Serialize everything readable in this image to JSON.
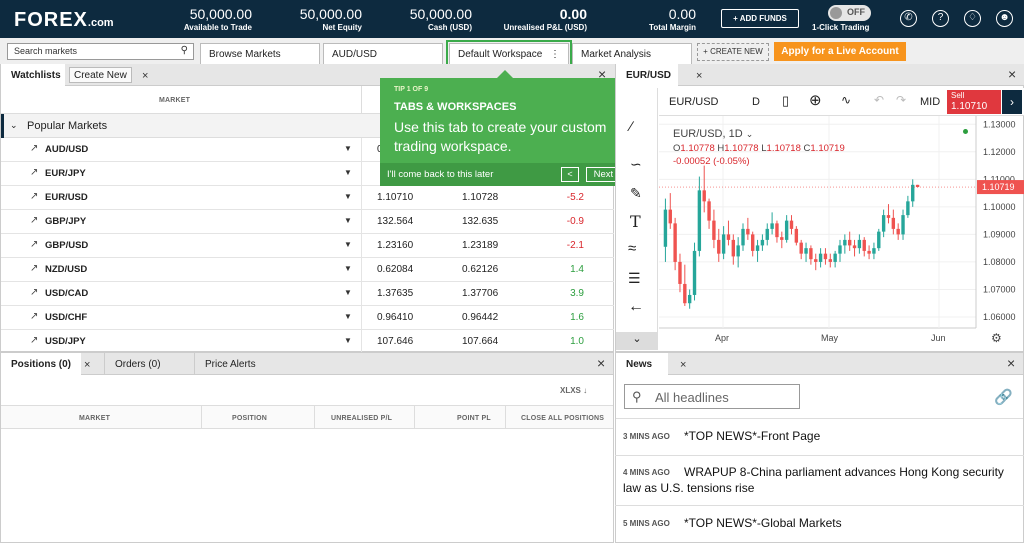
{
  "brand": {
    "logo_main": "FOREX",
    "logo_suffix": ".com"
  },
  "account_stats": [
    {
      "value": "50,000.00",
      "label": "Available to Trade"
    },
    {
      "value": "50,000.00",
      "label": "Net Equity"
    },
    {
      "value": "50,000.00",
      "label": "Cash (USD)"
    },
    {
      "value": "0.00",
      "label": "Unrealised P&L (USD)"
    },
    {
      "value": "0.00",
      "label": "Total Margin"
    }
  ],
  "header": {
    "add_funds": "+ ADD FUNDS",
    "toggle_state": "OFF",
    "one_click_label": "1-Click Trading",
    "icons": [
      "phone-icon",
      "help-icon",
      "notifications-icon",
      "user-icon"
    ]
  },
  "tabbar": {
    "search_placeholder": "Search markets",
    "tabs": [
      "Browse Markets",
      "AUD/USD",
      "Default Workspace",
      "Market Analysis"
    ],
    "create_workspace": "+ CREATE NEW",
    "live_account": "Apply for a Live Account"
  },
  "watchlist": {
    "tab_label": "Watchlists",
    "create_new": "Create New",
    "col_market": "MARKET",
    "group": "Popular Markets",
    "rows": [
      {
        "name": "AUD/USD",
        "sell": "0.",
        "buy": "",
        "change": ""
      },
      {
        "name": "EUR/JPY",
        "sell": "",
        "buy": "",
        "change": ""
      },
      {
        "name": "EUR/USD",
        "sell": "1.10710",
        "buy": "1.10728",
        "change": "-5.2",
        "dir": "neg"
      },
      {
        "name": "GBP/JPY",
        "sell": "132.564",
        "buy": "132.635",
        "change": "-0.9",
        "dir": "neg"
      },
      {
        "name": "GBP/USD",
        "sell": "1.23160",
        "buy": "1.23189",
        "change": "-2.1",
        "dir": "neg"
      },
      {
        "name": "NZD/USD",
        "sell": "0.62084",
        "buy": "0.62126",
        "change": "1.4",
        "dir": "pos"
      },
      {
        "name": "USD/CAD",
        "sell": "1.37635",
        "buy": "1.37706",
        "change": "3.9",
        "dir": "pos"
      },
      {
        "name": "USD/CHF",
        "sell": "0.96410",
        "buy": "0.96442",
        "change": "1.6",
        "dir": "pos"
      },
      {
        "name": "USD/JPY",
        "sell": "107.646",
        "buy": "107.664",
        "change": "1.0",
        "dir": "pos"
      }
    ]
  },
  "tooltip": {
    "counter": "TIP 1 OF 9",
    "title": "TABS & WORKSPACES",
    "body": "Use this tab to create your custom trading workspace.",
    "dismiss": "I'll come back to this later",
    "prev": "<",
    "next": "Next >"
  },
  "chart_panel": {
    "tab_label": "EUR/USD",
    "symbol": "EUR/USD",
    "interval": "D",
    "price_type": "MID",
    "sell_label": "Sell",
    "sell_price": "1.10710",
    "legend_title": "EUR/USD, 1D",
    "ohlc": {
      "o_label": "O",
      "o": "1.10778",
      "h_label": "H",
      "h": "1.10778",
      "l_label": "L",
      "l": "1.10718",
      "c_label": "C",
      "c": "1.10719"
    },
    "change": "-0.00052 (-0.05%)",
    "last_price": "1.10719"
  },
  "chart_data": {
    "type": "candlestick",
    "title": "EUR/USD, 1D",
    "x_ticks": [
      "Apr",
      "May",
      "Jun"
    ],
    "y_ticks": [
      1.13,
      1.12,
      1.11,
      1.1,
      1.09,
      1.08,
      1.07,
      1.06
    ],
    "ylim": [
      1.056,
      1.133
    ],
    "last_price": 1.10719,
    "colors": {
      "up": "#26a69a",
      "down": "#ef5350"
    },
    "candles": [
      [
        1.0855,
        1.103,
        1.08,
        1.099
      ],
      [
        1.099,
        1.105,
        1.092,
        1.094
      ],
      [
        1.094,
        1.096,
        1.077,
        1.08
      ],
      [
        1.08,
        1.083,
        1.069,
        1.072
      ],
      [
        1.072,
        1.079,
        1.064,
        1.065
      ],
      [
        1.065,
        1.07,
        1.063,
        1.068
      ],
      [
        1.068,
        1.087,
        1.066,
        1.084
      ],
      [
        1.084,
        1.111,
        1.082,
        1.106
      ],
      [
        1.106,
        1.115,
        1.098,
        1.102
      ],
      [
        1.102,
        1.103,
        1.092,
        1.095
      ],
      [
        1.095,
        1.099,
        1.085,
        1.088
      ],
      [
        1.088,
        1.092,
        1.08,
        1.083
      ],
      [
        1.083,
        1.093,
        1.081,
        1.09
      ],
      [
        1.09,
        1.095,
        1.086,
        1.088
      ],
      [
        1.088,
        1.09,
        1.079,
        1.082
      ],
      [
        1.082,
        1.089,
        1.078,
        1.086
      ],
      [
        1.086,
        1.094,
        1.084,
        1.092
      ],
      [
        1.092,
        1.096,
        1.088,
        1.09
      ],
      [
        1.09,
        1.091,
        1.082,
        1.084
      ],
      [
        1.084,
        1.088,
        1.08,
        1.086
      ],
      [
        1.086,
        1.09,
        1.084,
        1.088
      ],
      [
        1.088,
        1.094,
        1.086,
        1.092
      ],
      [
        1.092,
        1.098,
        1.09,
        1.094
      ],
      [
        1.094,
        1.095,
        1.087,
        1.089
      ],
      [
        1.089,
        1.091,
        1.085,
        1.088
      ],
      [
        1.088,
        1.097,
        1.087,
        1.095
      ],
      [
        1.095,
        1.097,
        1.09,
        1.092
      ],
      [
        1.092,
        1.093,
        1.086,
        1.087
      ],
      [
        1.087,
        1.088,
        1.081,
        1.083
      ],
      [
        1.083,
        1.087,
        1.08,
        1.085
      ],
      [
        1.085,
        1.086,
        1.079,
        1.081
      ],
      [
        1.081,
        1.083,
        1.077,
        1.08
      ],
      [
        1.08,
        1.085,
        1.078,
        1.083
      ],
      [
        1.083,
        1.085,
        1.079,
        1.081
      ],
      [
        1.081,
        1.083,
        1.078,
        1.08
      ],
      [
        1.08,
        1.084,
        1.078,
        1.083
      ],
      [
        1.083,
        1.088,
        1.08,
        1.086
      ],
      [
        1.086,
        1.09,
        1.083,
        1.088
      ],
      [
        1.088,
        1.091,
        1.084,
        1.086
      ],
      [
        1.086,
        1.088,
        1.082,
        1.085
      ],
      [
        1.085,
        1.09,
        1.083,
        1.088
      ],
      [
        1.088,
        1.089,
        1.082,
        1.084
      ],
      [
        1.084,
        1.086,
        1.081,
        1.083
      ],
      [
        1.083,
        1.087,
        1.081,
        1.085
      ],
      [
        1.085,
        1.092,
        1.084,
        1.091
      ],
      [
        1.091,
        1.099,
        1.089,
        1.097
      ],
      [
        1.097,
        1.101,
        1.094,
        1.096
      ],
      [
        1.096,
        1.099,
        1.09,
        1.092
      ],
      [
        1.092,
        1.094,
        1.088,
        1.09
      ],
      [
        1.09,
        1.099,
        1.088,
        1.097
      ],
      [
        1.097,
        1.104,
        1.096,
        1.102
      ],
      [
        1.102,
        1.11,
        1.1,
        1.108
      ],
      [
        1.108,
        1.108,
        1.107,
        1.1072
      ]
    ],
    "grid": true
  },
  "positions_panel": {
    "tabs": [
      "Positions (0)",
      "Orders (0)",
      "Price Alerts"
    ],
    "export_label": "XLXS",
    "columns": [
      "MARKET",
      "POSITION",
      "UNREALISED P/L",
      "POINT PL",
      "CLOSE ALL POSITIONS"
    ]
  },
  "news_panel": {
    "tab_label": "News",
    "search_placeholder": "All headlines",
    "items": [
      {
        "time": "3 MINS AGO",
        "headline": "*TOP NEWS*-Front Page"
      },
      {
        "time": "4 MINS AGO",
        "headline": "WRAPUP 8-China parliament advances Hong Kong security law as U.S. tensions rise"
      },
      {
        "time": "5 MINS AGO",
        "headline": "*TOP NEWS*-Global Markets"
      }
    ]
  }
}
